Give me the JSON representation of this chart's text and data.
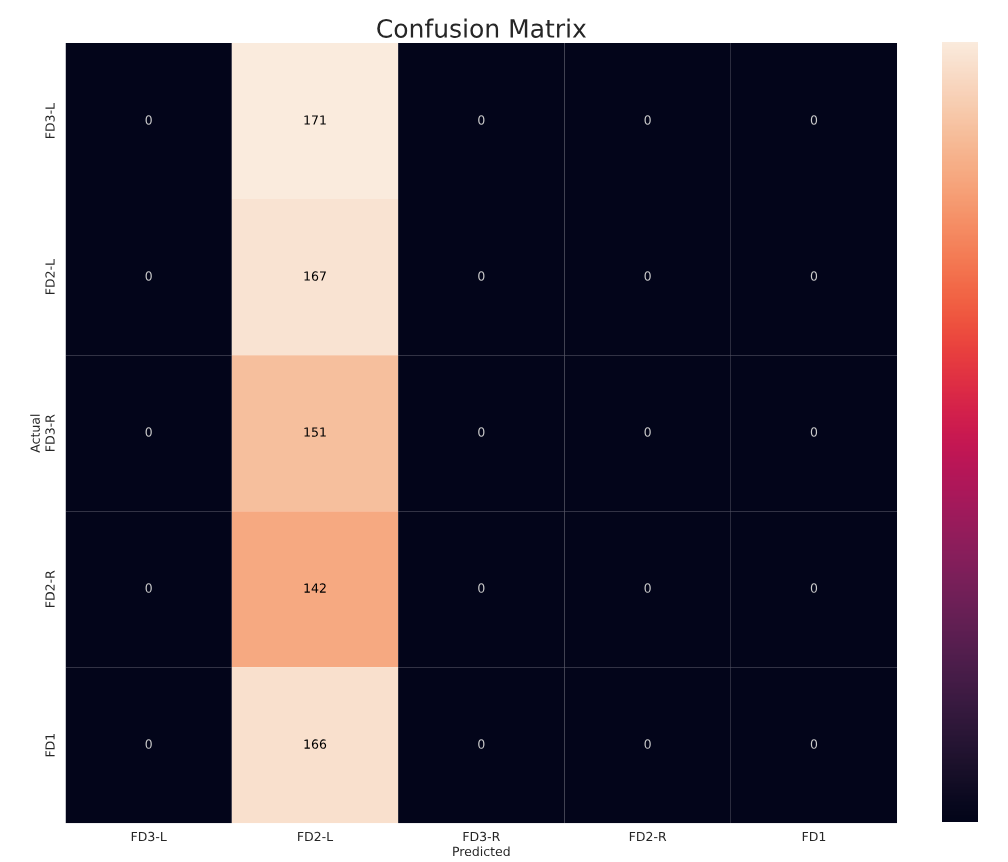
{
  "chart_data": {
    "type": "heatmap",
    "title": "Confusion Matrix",
    "xlabel": "Predicted",
    "ylabel": "Actual",
    "categories": [
      "FD3-L",
      "FD2-L",
      "FD3-R",
      "FD2-R",
      "FD1"
    ],
    "y_categories": [
      "FD3-L",
      "FD2-L",
      "FD3-R",
      "FD2-R",
      "FD1"
    ],
    "cells": [
      [
        0,
        171,
        0,
        0,
        0
      ],
      [
        0,
        167,
        0,
        0,
        0
      ],
      [
        0,
        151,
        0,
        0,
        0
      ],
      [
        0,
        142,
        0,
        0,
        0
      ],
      [
        0,
        166,
        0,
        0,
        0
      ]
    ],
    "data_labels": true
  }
}
